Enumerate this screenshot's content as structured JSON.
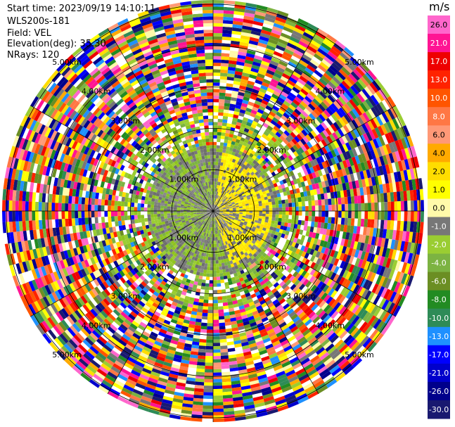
{
  "header": {
    "start_time": "Start time: 2023/09/19 14:10:11",
    "instrument": "WLS200s-181",
    "field": "Field: VEL",
    "elevation": "Elevation(deg): 35.30",
    "nrays": "NRays: 120"
  },
  "colorbar": {
    "units": "m/s",
    "ticks": [
      "26.0",
      "21.0",
      "17.0",
      "13.0",
      "10.0",
      "8.0",
      "6.0",
      "4.0",
      "2.0",
      "1.0",
      "0.0",
      "-1.0",
      "-2.0",
      "-4.0",
      "-6.0",
      "-8.0",
      "-10.0",
      "-13.0",
      "-17.0",
      "-21.0",
      "-26.0",
      "-30.0"
    ],
    "colors": [
      "#ff66cc",
      "#ff1493",
      "#ee0000",
      "#ff2200",
      "#ff5500",
      "#ff7744",
      "#ff9977",
      "#ffaa00",
      "#ffdd00",
      "#ffff00",
      "#fffaaa",
      "#777777",
      "#9acd32",
      "#7cb342",
      "#6b8e23",
      "#228b22",
      "#2e8b57",
      "#1e90ff",
      "#0000ff",
      "#0000cc",
      "#00008b",
      "#191970"
    ]
  },
  "range_rings": {
    "labels": [
      "1.00km",
      "2.00km",
      "3.00km",
      "4.00km",
      "5.00km"
    ]
  },
  "scan_summary": {
    "rays": 120,
    "gate_count": 64,
    "max_range_km": 5.0,
    "near_field_mix": {
      "inner_grey_gates": 8,
      "green_yellow_to_gate": 30
    },
    "outer_noise": true
  }
}
